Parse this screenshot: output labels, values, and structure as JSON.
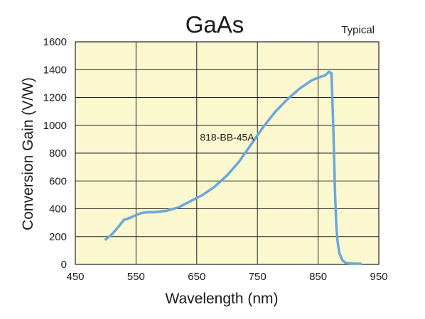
{
  "chart_data": {
    "type": "line",
    "title": "GaAs",
    "subtitle": "Typical",
    "xlabel": "Wavelength (nm)",
    "ylabel": "Conversion Gain (V/W)",
    "xlim": [
      450,
      950
    ],
    "ylim": [
      0,
      1600
    ],
    "x_ticks": [
      "450",
      "550",
      "650",
      "750",
      "850",
      "950"
    ],
    "y_ticks": [
      "0",
      "200",
      "400",
      "600",
      "800",
      "1000",
      "1200",
      "1400",
      "1600"
    ],
    "grid": true,
    "background_color": "#fbf7cf",
    "series": [
      {
        "name": "818-BB-45A",
        "color": "#6aa7dc",
        "x": [
          500,
          510,
          520,
          530,
          540,
          550,
          560,
          570,
          580,
          600,
          620,
          640,
          660,
          680,
          700,
          720,
          740,
          760,
          780,
          800,
          820,
          840,
          855,
          862,
          868,
          872,
          875,
          878,
          880,
          882,
          885,
          890,
          895,
          900,
          910,
          920
        ],
        "y": [
          180,
          215,
          265,
          320,
          335,
          355,
          370,
          375,
          375,
          385,
          410,
          455,
          500,
          560,
          640,
          740,
          865,
          990,
          1100,
          1190,
          1265,
          1325,
          1350,
          1360,
          1385,
          1375,
          1000,
          500,
          280,
          170,
          80,
          30,
          12,
          8,
          5,
          5
        ]
      }
    ],
    "annotations": [
      {
        "text": "818-BB-45A",
        "x": 700,
        "y": 890
      }
    ]
  }
}
